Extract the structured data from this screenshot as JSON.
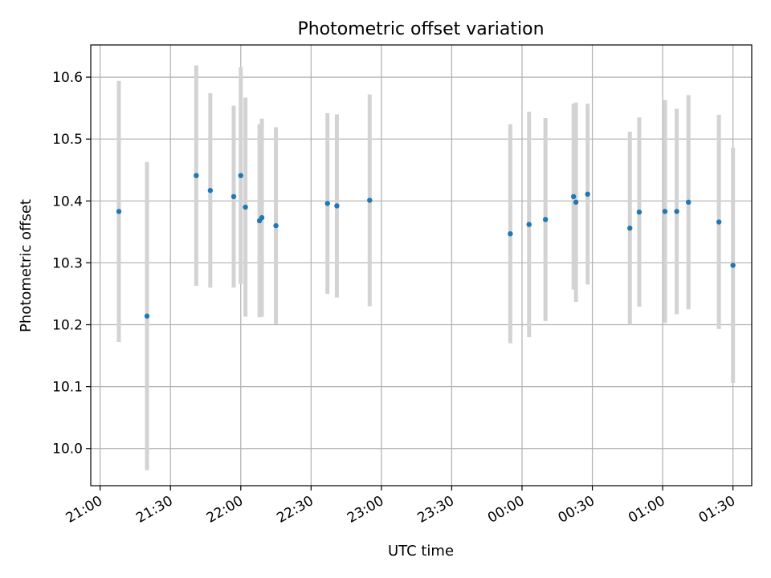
{
  "chart_data": {
    "type": "scatter",
    "title": "Photometric offset variation",
    "xlabel": "UTC time",
    "ylabel": "Photometric offset",
    "x_ticks": [
      "21:00",
      "21:30",
      "22:00",
      "22:30",
      "23:00",
      "23:30",
      "00:00",
      "00:30",
      "01:00",
      "01:30"
    ],
    "y_ticks": [
      10.0,
      10.1,
      10.2,
      10.3,
      10.4,
      10.5,
      10.6
    ],
    "xlim": [
      "20:56",
      "01:38"
    ],
    "ylim": [
      9.94,
      10.652
    ],
    "grid": true,
    "point_color": "#1f77b4",
    "errorbar_color": "#d3d3d3",
    "points": [
      {
        "x": "21:08",
        "y": 10.383,
        "err": 0.211
      },
      {
        "x": "21:20",
        "y": 10.214,
        "err": 0.249
      },
      {
        "x": "21:41",
        "y": 10.441,
        "err": 0.178
      },
      {
        "x": "21:47",
        "y": 10.417,
        "err": 0.157
      },
      {
        "x": "21:57",
        "y": 10.407,
        "err": 0.147
      },
      {
        "x": "22:00",
        "y": 10.441,
        "err": 0.175
      },
      {
        "x": "22:02",
        "y": 10.39,
        "err": 0.177
      },
      {
        "x": "22:08",
        "y": 10.368,
        "err": 0.156
      },
      {
        "x": "22:09",
        "y": 10.373,
        "err": 0.16
      },
      {
        "x": "22:15",
        "y": 10.36,
        "err": 0.159
      },
      {
        "x": "22:37",
        "y": 10.396,
        "err": 0.146
      },
      {
        "x": "22:41",
        "y": 10.392,
        "err": 0.148
      },
      {
        "x": "22:55",
        "y": 10.401,
        "err": 0.171
      },
      {
        "x": "23:55",
        "y": 10.347,
        "err": 0.177
      },
      {
        "x": "00:03",
        "y": 10.362,
        "err": 0.182
      },
      {
        "x": "00:10",
        "y": 10.37,
        "err": 0.164
      },
      {
        "x": "00:22",
        "y": 10.407,
        "err": 0.15
      },
      {
        "x": "00:23",
        "y": 10.398,
        "err": 0.161
      },
      {
        "x": "00:28",
        "y": 10.411,
        "err": 0.146
      },
      {
        "x": "00:46",
        "y": 10.356,
        "err": 0.156
      },
      {
        "x": "00:50",
        "y": 10.382,
        "err": 0.153
      },
      {
        "x": "01:01",
        "y": 10.383,
        "err": 0.18
      },
      {
        "x": "01:06",
        "y": 10.383,
        "err": 0.166
      },
      {
        "x": "01:11",
        "y": 10.398,
        "err": 0.173
      },
      {
        "x": "01:24",
        "y": 10.366,
        "err": 0.173
      },
      {
        "x": "01:30",
        "y": 10.296,
        "err": 0.19
      }
    ]
  }
}
